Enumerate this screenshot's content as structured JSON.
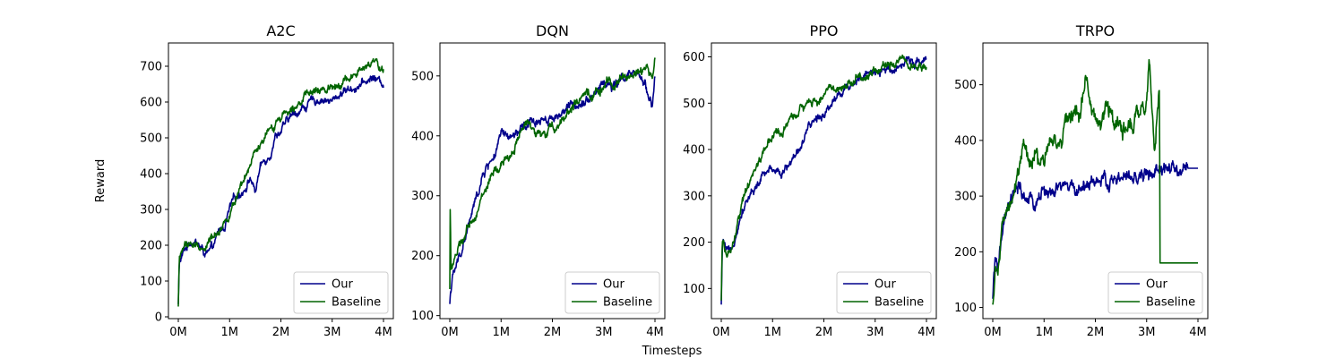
{
  "figure": {
    "xlabel": "Timesteps",
    "ylabel": "Reward"
  },
  "chart_data": [
    {
      "type": "line",
      "title": "A2C",
      "xlim": [
        0,
        4
      ],
      "ylim": [
        -5,
        765
      ],
      "xticks": [
        0,
        1,
        2,
        3,
        4
      ],
      "xtick_labels": [
        "0M",
        "1M",
        "2M",
        "3M",
        "4M"
      ],
      "yticks": [
        0,
        100,
        200,
        300,
        400,
        500,
        600,
        700
      ],
      "ytick_labels": [
        "0",
        "100",
        "200",
        "300",
        "400",
        "500",
        "600",
        "700"
      ],
      "legend": "lower-right",
      "series": [
        {
          "name": "Our",
          "color": "#00008b",
          "noise": 14,
          "x": [
            0,
            0.02,
            0.05,
            0.1,
            0.2,
            0.3,
            0.4,
            0.5,
            0.6,
            0.7,
            0.8,
            0.9,
            1.0,
            1.1,
            1.2,
            1.3,
            1.4,
            1.5,
            1.6,
            1.7,
            1.8,
            1.9,
            2.0,
            2.2,
            2.4,
            2.6,
            2.8,
            3.0,
            3.2,
            3.4,
            3.6,
            3.8,
            4.0
          ],
          "y": [
            35,
            150,
            160,
            180,
            205,
            215,
            200,
            180,
            175,
            200,
            240,
            250,
            300,
            330,
            345,
            360,
            390,
            350,
            420,
            440,
            460,
            510,
            520,
            560,
            580,
            600,
            610,
            600,
            630,
            640,
            650,
            670,
            650
          ]
        },
        {
          "name": "Baseline",
          "color": "#006400",
          "noise": 14,
          "x": [
            0,
            0.02,
            0.05,
            0.1,
            0.2,
            0.3,
            0.4,
            0.5,
            0.6,
            0.7,
            0.8,
            0.9,
            1.0,
            1.1,
            1.2,
            1.3,
            1.4,
            1.5,
            1.6,
            1.7,
            1.8,
            1.9,
            2.0,
            2.2,
            2.4,
            2.6,
            2.8,
            3.0,
            3.2,
            3.4,
            3.6,
            3.8,
            4.0
          ],
          "y": [
            30,
            160,
            175,
            195,
            205,
            200,
            195,
            190,
            210,
            230,
            245,
            265,
            290,
            320,
            345,
            380,
            420,
            460,
            470,
            500,
            520,
            540,
            560,
            590,
            610,
            625,
            630,
            645,
            660,
            670,
            690,
            710,
            690
          ]
        }
      ]
    },
    {
      "type": "line",
      "title": "DQN",
      "xlim": [
        0,
        4
      ],
      "ylim": [
        95,
        555
      ],
      "xticks": [
        0,
        1,
        2,
        3,
        4
      ],
      "xtick_labels": [
        "0M",
        "1M",
        "2M",
        "3M",
        "4M"
      ],
      "yticks": [
        100,
        200,
        300,
        400,
        500
      ],
      "ytick_labels": [
        "100",
        "200",
        "300",
        "400",
        "500"
      ],
      "legend": "lower-right",
      "series": [
        {
          "name": "Our",
          "color": "#00008b",
          "noise": 10,
          "x": [
            0,
            0.02,
            0.05,
            0.1,
            0.2,
            0.3,
            0.4,
            0.5,
            0.6,
            0.7,
            0.8,
            0.9,
            1.0,
            1.2,
            1.4,
            1.6,
            1.8,
            2.0,
            2.2,
            2.4,
            2.6,
            2.8,
            3.0,
            3.2,
            3.4,
            3.6,
            3.8,
            3.95,
            4.0
          ],
          "y": [
            120,
            145,
            160,
            175,
            200,
            230,
            260,
            290,
            320,
            345,
            360,
            370,
            400,
            395,
            410,
            420,
            430,
            430,
            440,
            450,
            460,
            470,
            490,
            480,
            500,
            500,
            490,
            450,
            500
          ]
        },
        {
          "name": "Baseline",
          "color": "#006400",
          "noise": 10,
          "x": [
            0,
            0.01,
            0.02,
            0.05,
            0.1,
            0.2,
            0.3,
            0.4,
            0.5,
            0.6,
            0.7,
            0.8,
            0.9,
            1.0,
            1.2,
            1.4,
            1.6,
            1.8,
            2.0,
            2.2,
            2.4,
            2.6,
            2.8,
            3.0,
            3.2,
            3.4,
            3.6,
            3.8,
            3.95,
            4.0
          ],
          "y": [
            140,
            320,
            180,
            185,
            200,
            215,
            230,
            250,
            270,
            290,
            310,
            330,
            340,
            350,
            370,
            410,
            420,
            400,
            410,
            430,
            450,
            460,
            470,
            480,
            490,
            500,
            505,
            510,
            500,
            535
          ]
        }
      ]
    },
    {
      "type": "line",
      "title": "PPO",
      "xlim": [
        0,
        4
      ],
      "ylim": [
        35,
        630
      ],
      "xticks": [
        0,
        1,
        2,
        3,
        4
      ],
      "xtick_labels": [
        "0M",
        "1M",
        "2M",
        "3M",
        "4M"
      ],
      "yticks": [
        100,
        200,
        300,
        400,
        500,
        600
      ],
      "ytick_labels": [
        "100",
        "200",
        "300",
        "400",
        "500",
        "600"
      ],
      "legend": "lower-right",
      "series": [
        {
          "name": "Our",
          "color": "#00008b",
          "noise": 12,
          "x": [
            0,
            0.02,
            0.05,
            0.1,
            0.2,
            0.3,
            0.4,
            0.5,
            0.6,
            0.7,
            0.8,
            0.9,
            1.0,
            1.1,
            1.2,
            1.4,
            1.6,
            1.8,
            2.0,
            2.2,
            2.4,
            2.6,
            2.8,
            3.0,
            3.2,
            3.4,
            3.6,
            3.8,
            4.0
          ],
          "y": [
            60,
            190,
            200,
            180,
            170,
            230,
            270,
            290,
            310,
            320,
            340,
            350,
            360,
            360,
            350,
            380,
            420,
            460,
            480,
            510,
            530,
            550,
            560,
            560,
            570,
            580,
            590,
            590,
            600
          ]
        },
        {
          "name": "Baseline",
          "color": "#006400",
          "noise": 12,
          "x": [
            0,
            0.02,
            0.05,
            0.1,
            0.2,
            0.3,
            0.4,
            0.5,
            0.6,
            0.7,
            0.8,
            0.9,
            1.0,
            1.2,
            1.4,
            1.6,
            1.8,
            2.0,
            2.2,
            2.4,
            2.6,
            2.8,
            3.0,
            3.2,
            3.4,
            3.6,
            3.8,
            4.0
          ],
          "y": [
            70,
            200,
            190,
            175,
            180,
            230,
            280,
            310,
            340,
            370,
            390,
            410,
            430,
            440,
            470,
            490,
            500,
            520,
            530,
            540,
            550,
            560,
            570,
            580,
            590,
            595,
            580,
            570
          ]
        }
      ]
    },
    {
      "type": "line",
      "title": "TRPO",
      "xlim": [
        0,
        4
      ],
      "ylim": [
        80,
        575
      ],
      "xticks": [
        0,
        1,
        2,
        3,
        4
      ],
      "xtick_labels": [
        "0M",
        "1M",
        "2M",
        "3M",
        "4M"
      ],
      "yticks": [
        100,
        200,
        300,
        400,
        500
      ],
      "ytick_labels": [
        "100",
        "200",
        "300",
        "400",
        "500"
      ],
      "legend": "lower-right",
      "series": [
        {
          "name": "Our",
          "color": "#00008b",
          "noise": 16,
          "x": [
            0,
            0.05,
            0.1,
            0.2,
            0.3,
            0.4,
            0.5,
            0.6,
            0.7,
            0.8,
            0.9,
            1.0,
            1.2,
            1.4,
            1.6,
            1.8,
            2.0,
            2.2,
            2.4,
            2.6,
            2.8,
            3.0,
            3.2,
            3.4,
            3.6,
            3.8,
            4.0
          ],
          "y": [
            110,
            190,
            170,
            240,
            270,
            300,
            310,
            300,
            290,
            280,
            300,
            310,
            300,
            320,
            310,
            320,
            330,
            320,
            330,
            330,
            330,
            340,
            340,
            350,
            340,
            350,
            350
          ]
        },
        {
          "name": "Baseline",
          "color": "#006400",
          "noise": 20,
          "x": [
            0,
            0.05,
            0.1,
            0.2,
            0.3,
            0.4,
            0.5,
            0.6,
            0.7,
            0.8,
            0.9,
            1.0,
            1.1,
            1.2,
            1.3,
            1.4,
            1.5,
            1.6,
            1.7,
            1.8,
            1.9,
            2.0,
            2.1,
            2.2,
            2.4,
            2.6,
            2.8,
            3.0,
            3.05,
            3.1,
            3.15,
            3.2,
            3.25,
            3.26,
            4.0
          ],
          "y": [
            100,
            180,
            160,
            250,
            280,
            310,
            340,
            380,
            360,
            370,
            360,
            370,
            380,
            410,
            390,
            420,
            440,
            460,
            440,
            500,
            470,
            450,
            430,
            460,
            440,
            420,
            440,
            470,
            550,
            450,
            380,
            430,
            490,
            180,
            180
          ]
        }
      ]
    }
  ]
}
